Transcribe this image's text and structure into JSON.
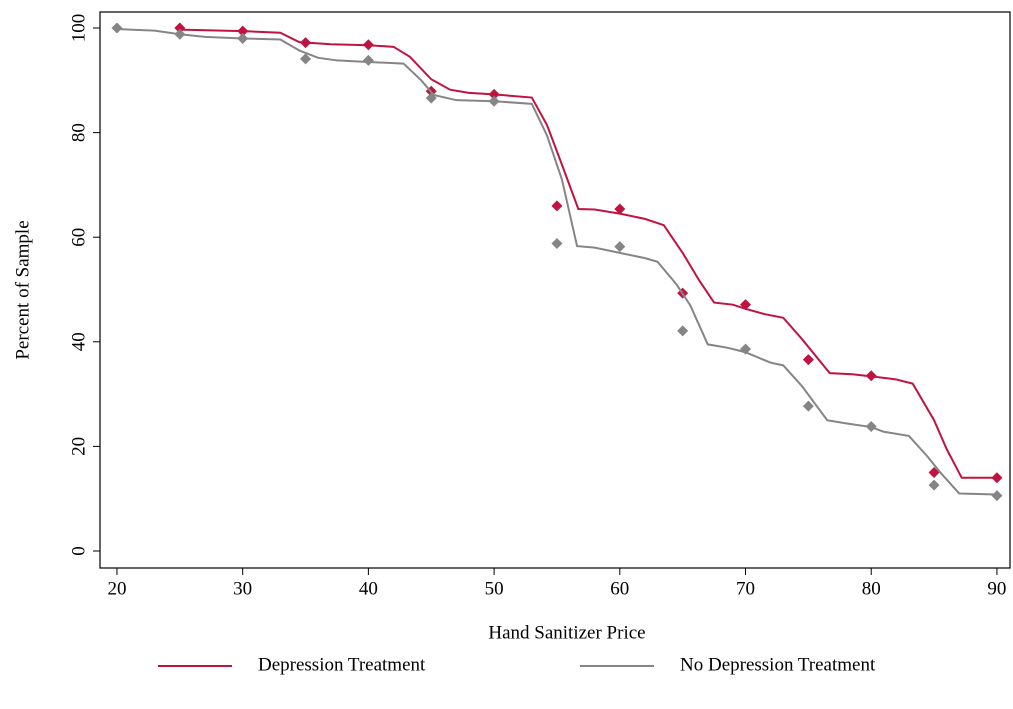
{
  "chart_data": {
    "type": "line",
    "x_label": "Hand Sanitizer Price",
    "y_label": "Percent of Sample",
    "xlim": [
      18.65,
      91.04
    ],
    "ylim": [
      -3.25,
      103.06
    ],
    "xticks": [
      20,
      30,
      40,
      50,
      60,
      70,
      80,
      90
    ],
    "yticks": [
      0,
      20,
      40,
      60,
      80,
      100
    ],
    "legend": "bottom",
    "series": [
      {
        "name": "Depression Treatment",
        "color": "#c0133f",
        "x": [
          25,
          30,
          33,
          34.5,
          37,
          40,
          42,
          43.3,
          45,
          46.5,
          48,
          50,
          53,
          54.2,
          55.3,
          56.7,
          58,
          60,
          62,
          63.5,
          65,
          66.3,
          67.5,
          69,
          70,
          71.5,
          73,
          74.5,
          76.7,
          78.5,
          80,
          82,
          83.3,
          85,
          86,
          87.2,
          90
        ],
        "values": [
          99.7,
          99.4,
          99.1,
          97.3,
          96.9,
          96.7,
          96.4,
          94.5,
          90.2,
          88.2,
          87.6,
          87.3,
          86.7,
          81.5,
          74.5,
          65.4,
          65.3,
          64.5,
          63.5,
          62.3,
          57,
          51.8,
          47.5,
          47.1,
          46.3,
          45.3,
          44.6,
          40.5,
          34,
          33.8,
          33.4,
          32.8,
          32,
          25,
          19.5,
          14,
          14
        ],
        "marker_x": [
          25,
          30,
          35,
          40,
          45,
          50,
          55,
          60,
          65,
          70,
          75,
          80,
          85,
          90
        ],
        "marker_values": [
          100,
          99.4,
          97.2,
          96.8,
          87.9,
          87.3,
          66,
          65.4,
          49.3,
          47.1,
          36.6,
          33.5,
          15,
          14
        ]
      },
      {
        "name": "No Depression Treatment",
        "color": "#858585",
        "x": [
          20,
          23,
          25,
          27,
          30,
          33,
          34.5,
          36,
          37.5,
          40,
          42.8,
          44.2,
          45.2,
          47,
          50,
          53,
          54.2,
          55.4,
          56.6,
          58,
          60,
          62,
          63,
          64.5,
          65.6,
          67,
          68.5,
          70,
          72,
          73,
          74.5,
          76.5,
          78,
          80,
          81,
          83,
          84.5,
          85.5,
          87,
          90
        ],
        "values": [
          99.8,
          99.5,
          98.8,
          98.3,
          98,
          97.8,
          95.7,
          94.3,
          93.8,
          93.5,
          93.2,
          90,
          87.2,
          86.2,
          86,
          85.5,
          79.5,
          71,
          58.3,
          58,
          57,
          56,
          55.3,
          51,
          47,
          39.5,
          38.9,
          38,
          36,
          35.5,
          31.5,
          25,
          24.4,
          23.7,
          22.8,
          22,
          18,
          15,
          11,
          10.8
        ],
        "marker_x": [
          20,
          25,
          30,
          35,
          40,
          45,
          50,
          55,
          60,
          65,
          70,
          75,
          80,
          85,
          90
        ],
        "marker_values": [
          100,
          98.8,
          98,
          94.1,
          93.8,
          86.6,
          86,
          58.8,
          58.2,
          42.1,
          38.6,
          27.7,
          23.8,
          12.6,
          10.6
        ]
      }
    ]
  }
}
